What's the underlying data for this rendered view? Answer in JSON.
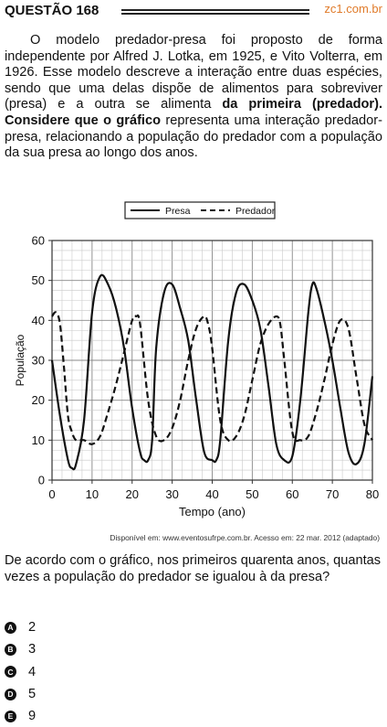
{
  "header": {
    "title": "QUESTÃO 168",
    "site": "zc1.com.br"
  },
  "stem": {
    "part1": "O modelo predador-presa foi proposto de forma independente por Alfred J. Lotka, em 1925, e Vito Volterra, em 1926. Esse modelo descreve a interação entre duas espécies, sendo que uma delas dispõe de alimentos para sobreviver (presa) e a outra se alimenta ",
    "part_bold": "da primeira (predador). Considere que o gráfico",
    "part2": " representa uma interação predador-presa, relacionando a população do predador com a população da sua presa ao longo dos anos."
  },
  "source": "Disponível em: www.eventosufrpe.com.br. Acesso em: 22 mar. 2012 (adaptado)",
  "question": "De acordo com o gráfico, nos primeiros quarenta anos, quantas vezes a população do predador se igualou à da presa?",
  "options": [
    {
      "letter": "A",
      "text": "2"
    },
    {
      "letter": "B",
      "text": "3"
    },
    {
      "letter": "C",
      "text": "4"
    },
    {
      "letter": "D",
      "text": "5"
    },
    {
      "letter": "E",
      "text": "9"
    }
  ],
  "chart_data": {
    "type": "line",
    "xlabel": "Tempo (ano)",
    "ylabel": "População",
    "xlim": [
      0,
      80
    ],
    "ylim": [
      0,
      60
    ],
    "xticks": [
      0,
      10,
      20,
      30,
      40,
      50,
      60,
      70,
      80
    ],
    "yticks": [
      0,
      10,
      20,
      30,
      40,
      50,
      60
    ],
    "grid": true,
    "legend_position": "top-center",
    "series": [
      {
        "name": "Presa",
        "style": "solid",
        "x": [
          0,
          2,
          4,
          5,
          6,
          8,
          10,
          12,
          14,
          16,
          18,
          20,
          22,
          23,
          24,
          25,
          26,
          28,
          30,
          32,
          34,
          36,
          38,
          40,
          41,
          42,
          44,
          46,
          48,
          50,
          52,
          54,
          56,
          58,
          60,
          62,
          64,
          65,
          66,
          68,
          70,
          72,
          74,
          76,
          78,
          80
        ],
        "y": [
          30,
          16,
          5,
          3,
          4,
          15,
          42,
          51,
          49,
          43,
          33,
          18,
          7,
          5,
          5,
          10,
          33,
          47,
          49,
          43,
          35,
          20,
          7,
          5,
          5,
          10,
          35,
          47,
          49,
          45,
          38,
          24,
          9,
          5,
          6,
          20,
          42,
          49,
          48,
          40,
          30,
          18,
          7,
          4,
          9,
          26
        ]
      },
      {
        "name": "Predador",
        "style": "dashed",
        "x": [
          0,
          1,
          2,
          3,
          4,
          5,
          6,
          8,
          10,
          12,
          14,
          16,
          18,
          20,
          21,
          22,
          24,
          26,
          28,
          30,
          32,
          34,
          36,
          38,
          39,
          40,
          42,
          44,
          46,
          48,
          50,
          52,
          54,
          56,
          57,
          58,
          60,
          62,
          64,
          66,
          68,
          70,
          72,
          74,
          76,
          78,
          80
        ],
        "y": [
          41,
          42,
          39,
          28,
          16,
          12,
          10,
          10,
          9,
          11,
          17,
          24,
          32,
          40,
          41,
          39,
          20,
          11,
          10,
          13,
          20,
          30,
          38,
          41,
          39,
          33,
          15,
          10,
          11,
          16,
          25,
          34,
          39,
          41,
          39,
          30,
          12,
          10,
          11,
          17,
          25,
          34,
          40,
          38,
          26,
          14,
          10
        ]
      }
    ]
  }
}
